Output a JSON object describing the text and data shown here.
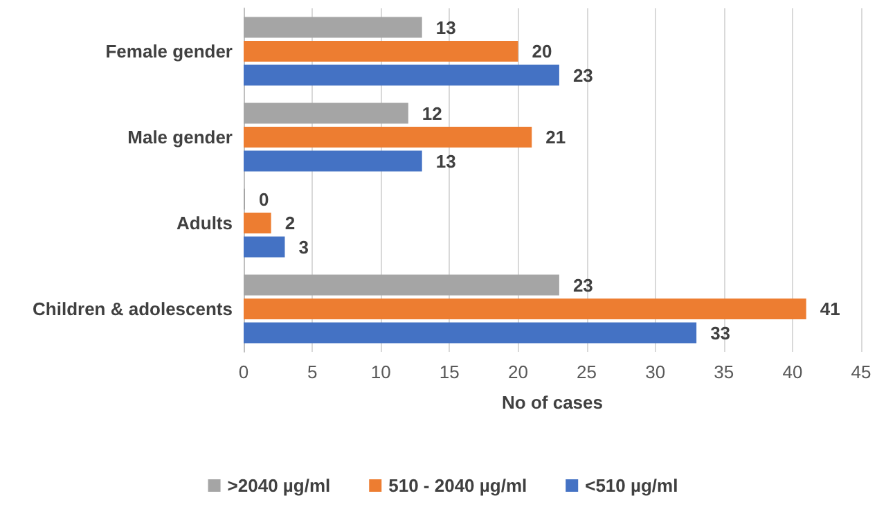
{
  "chart_data": {
    "type": "bar",
    "orientation": "horizontal",
    "xlabel": "No of cases",
    "categories": [
      "Female gender",
      "Male gender",
      "Adults",
      "Children & adolescents"
    ],
    "series": [
      {
        "name": ">2040 µg/ml",
        "color": "#a5a5a5",
        "values": [
          13,
          12,
          0,
          23
        ]
      },
      {
        "name": "510 - 2040 µg/ml",
        "color": "#ed7d31",
        "values": [
          20,
          21,
          2,
          41
        ]
      },
      {
        "name": "<510 µg/ml",
        "color": "#4472c4",
        "values": [
          23,
          13,
          3,
          33
        ]
      }
    ],
    "xlim": [
      0,
      45
    ],
    "xticks": [
      0,
      5,
      10,
      15,
      20,
      25,
      30,
      35,
      40,
      45
    ],
    "grid": "x",
    "legend": "bottom",
    "data_labels": true
  }
}
